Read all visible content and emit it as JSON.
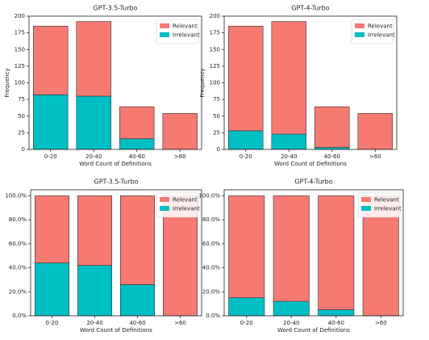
{
  "chart_data": [
    {
      "type": "bar",
      "stacked": true,
      "title": "GPT-3.5-Turbo",
      "xlabel": "Word Count of Definitions",
      "ylabel": "Frequency",
      "categories": [
        "0-20",
        "20-40",
        "40-60",
        ">60"
      ],
      "series": [
        {
          "name": "Relevant",
          "color": "#f47a72",
          "values": [
            103,
            112,
            48,
            54
          ]
        },
        {
          "name": "Irrelevant",
          "color": "#00bfc4",
          "values": [
            82,
            80,
            16,
            0
          ]
        }
      ],
      "ylim": [
        0,
        200
      ],
      "yticks": [
        0,
        25,
        50,
        75,
        100,
        125,
        150,
        175,
        200
      ],
      "legend": "upper right"
    },
    {
      "type": "bar",
      "stacked": true,
      "title": "GPT-4-Turbo",
      "xlabel": "Word Count of Definitions",
      "ylabel": "Frequency",
      "categories": [
        "0-20",
        "20-40",
        "40-60",
        ">60"
      ],
      "series": [
        {
          "name": "Relevant",
          "color": "#f47a72",
          "values": [
            157,
            169,
            61,
            54
          ]
        },
        {
          "name": "Irrelevant",
          "color": "#00bfc4",
          "values": [
            28,
            23,
            3,
            0
          ]
        }
      ],
      "ylim": [
        0,
        200
      ],
      "yticks": [
        0,
        25,
        50,
        75,
        100,
        125,
        150,
        175,
        200
      ],
      "legend": "upper right"
    },
    {
      "type": "bar",
      "stacked": true,
      "title": "GPT-3.5-Turbo",
      "xlabel": "Word Count of Definitions",
      "categories": [
        "0-20",
        "20-40",
        "40-60",
        ">60"
      ],
      "series": [
        {
          "name": "Relevant",
          "color": "#f47a72",
          "values": [
            56,
            58,
            74,
            100
          ]
        },
        {
          "name": "Irrelevant",
          "color": "#00bfc4",
          "values": [
            44,
            42,
            26,
            0
          ]
        }
      ],
      "ylim": [
        0,
        105
      ],
      "yticks": [
        {
          "value": 0,
          "label": "0.0%"
        },
        {
          "value": 20,
          "label": "20.0%"
        },
        {
          "value": 40,
          "label": "40.0%"
        },
        {
          "value": 60,
          "label": "60.0%"
        },
        {
          "value": 80,
          "label": "80.0%"
        },
        {
          "value": 100,
          "label": "100.0%"
        }
      ],
      "legend": "upper right"
    },
    {
      "type": "bar",
      "stacked": true,
      "title": "GPT-4-Turbo",
      "xlabel": "Word Count of Definitions",
      "categories": [
        "0-20",
        "20-40",
        "40-60",
        ">60"
      ],
      "series": [
        {
          "name": "Relevant",
          "color": "#f47a72",
          "values": [
            85,
            88,
            95,
            100
          ]
        },
        {
          "name": "Irrelevant",
          "color": "#00bfc4",
          "values": [
            15,
            12,
            5,
            0
          ]
        }
      ],
      "ylim": [
        0,
        105
      ],
      "yticks": [
        {
          "value": 0,
          "label": "0.0%"
        },
        {
          "value": 20,
          "label": "20.0%"
        },
        {
          "value": 40,
          "label": "40.0%"
        },
        {
          "value": 60,
          "label": "60.0%"
        },
        {
          "value": 80,
          "label": "80.0%"
        },
        {
          "value": 100,
          "label": "100.0%"
        }
      ],
      "legend": "upper right"
    }
  ]
}
